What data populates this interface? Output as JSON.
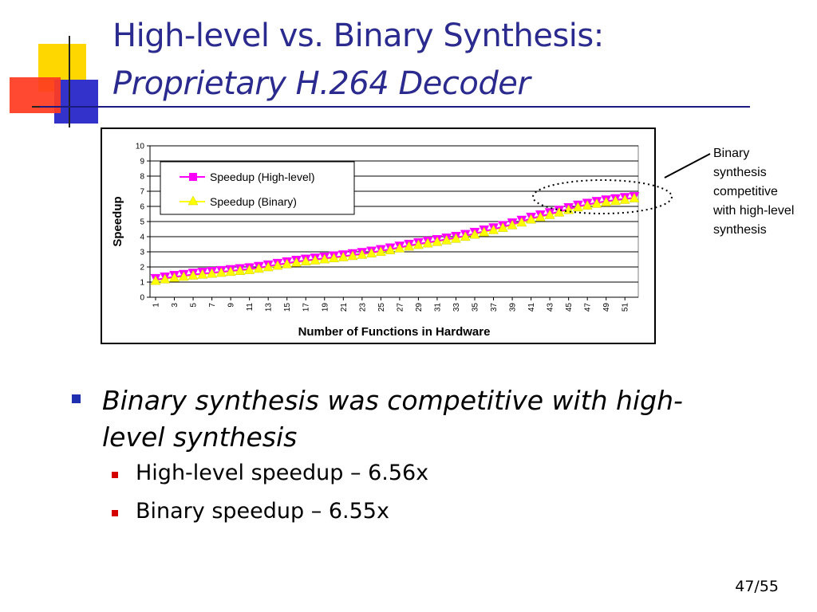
{
  "slide": {
    "title_line1": "High-level vs. Binary Synthesis:",
    "title_line2": "Proprietary H.264 Decoder",
    "annotation": "Binary synthesis competitive with high-level synthesis",
    "bullets": [
      {
        "text": "Binary synthesis was competitive with high-level synthesis",
        "level": 1
      },
      {
        "text": "High-level speedup – 6.56x",
        "level": 2
      },
      {
        "text": "Binary speedup – 6.55x",
        "level": 2
      }
    ],
    "slide_number": "47/55",
    "colors": {
      "title": "#2b2a8f",
      "bullet1": "#1f2fb0",
      "bullet2": "#d40000",
      "deco_yellow": "#ffd700",
      "deco_red": "#ff3b1f",
      "deco_blue": "#3333cc"
    }
  },
  "chart_data": {
    "type": "line",
    "title": "",
    "xlabel": "Number of Functions in Hardware",
    "ylabel": "Speedup",
    "x": [
      1,
      2,
      3,
      4,
      5,
      6,
      7,
      8,
      9,
      10,
      11,
      12,
      13,
      14,
      15,
      16,
      17,
      18,
      19,
      20,
      21,
      22,
      23,
      24,
      25,
      26,
      27,
      28,
      29,
      30,
      31,
      32,
      33,
      34,
      35,
      36,
      37,
      38,
      39,
      40,
      41,
      42,
      43,
      44,
      45,
      46,
      47,
      48,
      49,
      50,
      51,
      52
    ],
    "x_tick_labels": [
      "1",
      "3",
      "5",
      "7",
      "9",
      "11",
      "13",
      "15",
      "17",
      "19",
      "21",
      "23",
      "25",
      "27",
      "29",
      "31",
      "33",
      "35",
      "37",
      "39",
      "41",
      "43",
      "45",
      "47",
      "49",
      "51"
    ],
    "y_ticks": [
      0,
      1,
      2,
      3,
      4,
      5,
      6,
      7,
      8,
      9,
      10
    ],
    "ylim": [
      0,
      10
    ],
    "grid": true,
    "legend_position": "top-left",
    "series": [
      {
        "name": "Speedup (High-level)",
        "color": "#ff00ff",
        "marker": "square",
        "values": [
          1.15,
          1.25,
          1.35,
          1.42,
          1.5,
          1.56,
          1.62,
          1.68,
          1.74,
          1.8,
          1.86,
          1.95,
          2.05,
          2.15,
          2.25,
          2.35,
          2.43,
          2.5,
          2.57,
          2.64,
          2.71,
          2.79,
          2.87,
          2.96,
          3.06,
          3.17,
          3.29,
          3.41,
          3.52,
          3.62,
          3.72,
          3.82,
          3.93,
          4.06,
          4.2,
          4.36,
          4.5,
          4.65,
          4.82,
          5.0,
          5.2,
          5.35,
          5.5,
          5.66,
          5.83,
          6.0,
          6.12,
          6.24,
          6.34,
          6.42,
          6.5,
          6.56
        ]
      },
      {
        "name": "Speedup (Binary)",
        "color": "#ffff00",
        "marker": "triangle",
        "values": [
          1.1,
          1.2,
          1.3,
          1.37,
          1.45,
          1.51,
          1.57,
          1.63,
          1.69,
          1.75,
          1.81,
          1.9,
          2.0,
          2.1,
          2.2,
          2.3,
          2.38,
          2.45,
          2.52,
          2.59,
          2.66,
          2.74,
          2.82,
          2.91,
          3.01,
          3.12,
          3.24,
          3.36,
          3.47,
          3.57,
          3.67,
          3.77,
          3.88,
          4.01,
          4.15,
          4.31,
          4.45,
          4.6,
          4.77,
          4.95,
          5.15,
          5.3,
          5.45,
          5.61,
          5.78,
          5.95,
          6.07,
          6.19,
          6.29,
          6.37,
          6.45,
          6.55
        ]
      }
    ]
  }
}
